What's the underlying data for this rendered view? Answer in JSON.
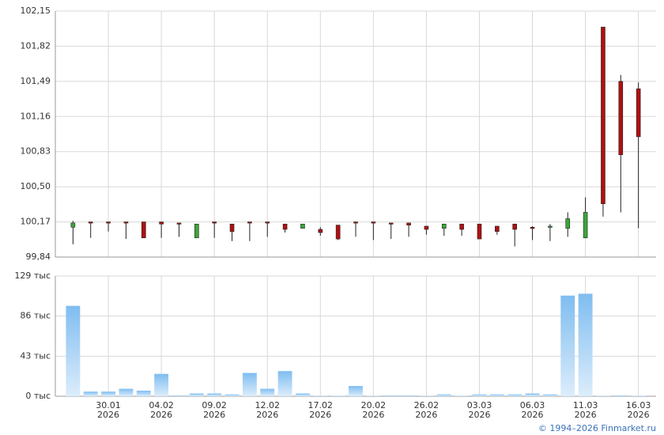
{
  "chart_data": [
    {
      "type": "candlestick",
      "up_color": "#3aa63a",
      "down_color": "#b01010",
      "grid": true,
      "ylim": [
        99.84,
        102.15
      ],
      "yticks": [
        {
          "value": 99.84,
          "label": "99,84"
        },
        {
          "value": 100.17,
          "label": "100,17"
        },
        {
          "value": 100.5,
          "label": "100,50"
        },
        {
          "value": 100.83,
          "label": "100,83"
        },
        {
          "value": 101.16,
          "label": "101,16"
        },
        {
          "value": 101.49,
          "label": "101,49"
        },
        {
          "value": 101.82,
          "label": "101,82"
        },
        {
          "value": 102.15,
          "label": "102,15"
        }
      ],
      "open": [
        100.12,
        100.17,
        100.17,
        100.17,
        100.17,
        100.17,
        100.16,
        100.02,
        100.17,
        100.15,
        100.17,
        100.17,
        100.15,
        100.11,
        100.1,
        100.14,
        100.17,
        100.17,
        100.16,
        100.16,
        100.13,
        100.11,
        100.15,
        100.15,
        100.13,
        100.15,
        100.12,
        100.12,
        100.11,
        100.02,
        102.0,
        101.49,
        101.42
      ],
      "high": [
        100.18,
        100.17,
        100.17,
        100.17,
        100.17,
        100.17,
        100.16,
        100.15,
        100.17,
        100.15,
        100.17,
        100.17,
        100.15,
        100.15,
        100.12,
        100.14,
        100.17,
        100.17,
        100.16,
        100.16,
        100.13,
        100.15,
        100.15,
        100.15,
        100.13,
        100.15,
        100.13,
        100.15,
        100.26,
        100.4,
        102.0,
        101.55,
        101.48
      ],
      "low": [
        99.96,
        100.02,
        100.08,
        100.01,
        100.02,
        100.02,
        100.03,
        100.02,
        100.02,
        99.99,
        99.99,
        100.03,
        100.07,
        100.11,
        100.04,
        100.0,
        100.03,
        100.0,
        100.01,
        100.03,
        100.05,
        100.04,
        100.04,
        100.01,
        100.05,
        99.94,
        100.0,
        99.99,
        100.03,
        100.02,
        100.22,
        100.26,
        100.11
      ],
      "close": [
        100.16,
        100.16,
        100.16,
        100.16,
        100.02,
        100.15,
        100.15,
        100.15,
        100.16,
        100.08,
        100.16,
        100.16,
        100.1,
        100.15,
        100.07,
        100.01,
        100.16,
        100.16,
        100.15,
        100.14,
        100.1,
        100.15,
        100.1,
        100.01,
        100.08,
        100.1,
        100.11,
        100.13,
        100.2,
        100.26,
        100.34,
        100.8,
        100.97
      ]
    },
    {
      "type": "bar",
      "color": "#7fbdf0",
      "grid": true,
      "ylim": [
        0,
        129000
      ],
      "yticks": [
        {
          "value": 0,
          "label": "0 тыс"
        },
        {
          "value": 43000,
          "label": "43 тыс"
        },
        {
          "value": 86000,
          "label": "86 тыс"
        },
        {
          "value": 129000,
          "label": "129 тыс"
        }
      ],
      "categories": [
        null,
        null,
        [
          "30.01",
          "2026"
        ],
        null,
        null,
        [
          "04.02",
          "2026"
        ],
        null,
        null,
        [
          "09.02",
          "2026"
        ],
        null,
        null,
        [
          "12.02",
          "2026"
        ],
        null,
        null,
        [
          "17.02",
          "2026"
        ],
        null,
        null,
        [
          "20.02",
          "2026"
        ],
        null,
        null,
        [
          "26.02",
          "2026"
        ],
        null,
        null,
        [
          "03.03",
          "2026"
        ],
        null,
        null,
        [
          "06.03",
          "2026"
        ],
        null,
        null,
        [
          "11.03",
          "2026"
        ],
        null,
        null,
        [
          "16.03",
          "2026"
        ]
      ],
      "values": [
        97000,
        5000,
        5000,
        8000,
        6000,
        24000,
        1000,
        3000,
        3000,
        2000,
        25000,
        8000,
        27000,
        3000,
        500,
        500,
        11000,
        500,
        1000,
        1000,
        500,
        2000,
        500,
        2000,
        2000,
        2000,
        3000,
        2000,
        108000,
        110000,
        500,
        1000,
        500
      ]
    }
  ],
  "footer": "© 1994–2026 Finmarket.ru"
}
